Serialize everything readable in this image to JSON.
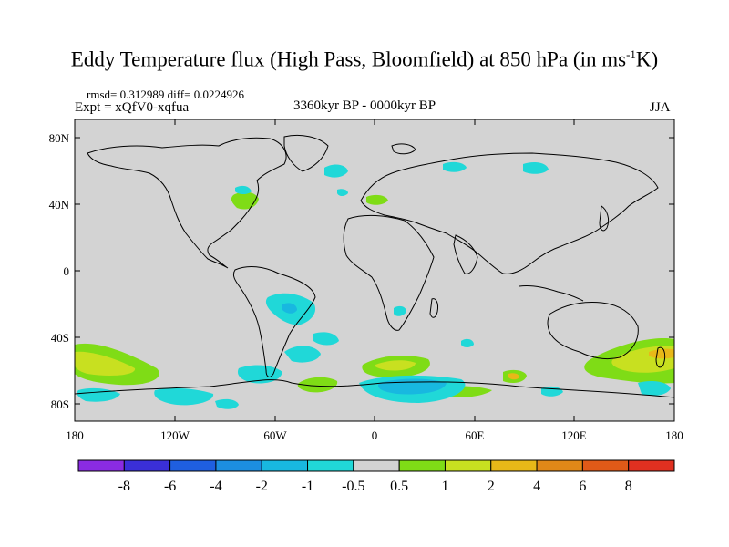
{
  "title": "Eddy Temperature flux (High Pass, Bloomfield) at 850 hPa (in ms",
  "title_sup": "-1",
  "title_end": "K)",
  "stats": "rmsd= 0.312989 diff= 0.0224926",
  "experiment": "Expt = xQfV0-xqfua",
  "period": "3360kyr BP - 0000kyr BP",
  "season": "JJA",
  "lat_labels": [
    "80N",
    "40N",
    "0",
    "40S",
    "80S"
  ],
  "lon_labels": [
    "180",
    "120W",
    "60W",
    "0",
    "60E",
    "120E",
    "180"
  ],
  "colorbar": {
    "levels": [
      "-8",
      "-6",
      "-4",
      "-2",
      "-1",
      "-0.5",
      "0.5",
      "1",
      "2",
      "4",
      "6",
      "8"
    ],
    "colors": [
      "#8a2be2",
      "#3a2fd8",
      "#1f5fe0",
      "#1c8ee0",
      "#18b8e0",
      "#20d8d8",
      "#d3d3d3",
      "#7fdc16",
      "#c8e020",
      "#e8b818",
      "#e08818",
      "#e05a18",
      "#e03020"
    ]
  },
  "map_colors": {
    "background": "#d3d3d3",
    "positive_small": "#7fdc16",
    "positive_med": "#c8e020",
    "positive_high": "#e8b818",
    "negative_small": "#20d8d8",
    "negative_med": "#18b8e0",
    "coast": "#000000"
  }
}
